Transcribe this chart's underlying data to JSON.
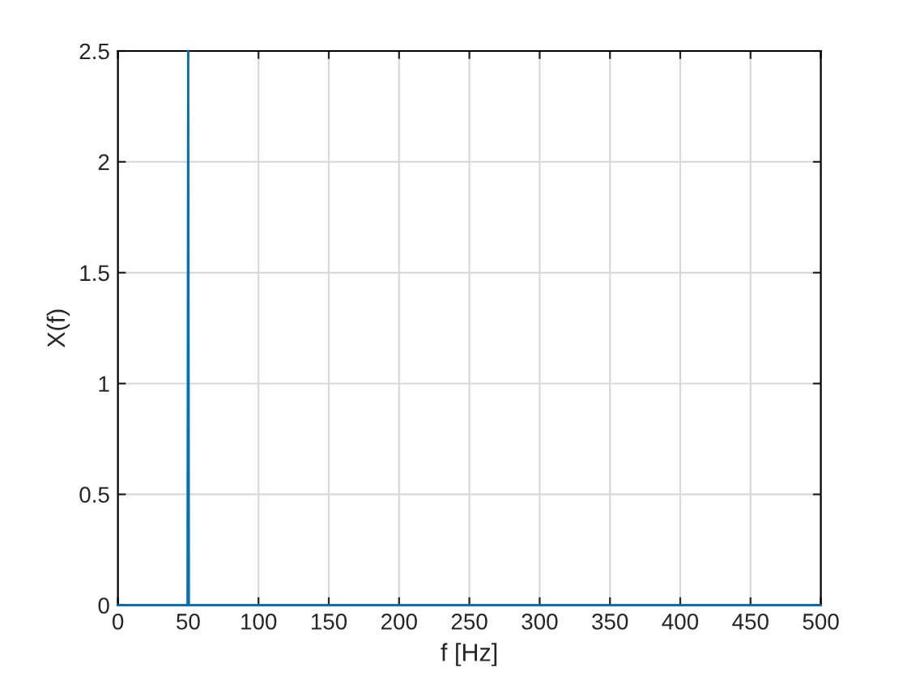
{
  "chart_data": {
    "type": "line",
    "xlabel": "f [Hz]",
    "ylabel": "X(f)",
    "series": [
      {
        "color": "#0072bd",
        "x": [
          0,
          49.5,
          50,
          50.5,
          500
        ],
        "values": [
          0,
          0,
          2.5,
          0,
          0
        ]
      }
    ],
    "xlim": [
      0,
      500
    ],
    "ylim": [
      0,
      2.5
    ],
    "xticks": [
      0,
      50,
      100,
      150,
      200,
      250,
      300,
      350,
      400,
      450,
      500
    ],
    "yticks": [
      0,
      0.5,
      1,
      1.5,
      2,
      2.5
    ],
    "grid": true,
    "legend": false,
    "marker": "none",
    "line_style": "solid"
  }
}
